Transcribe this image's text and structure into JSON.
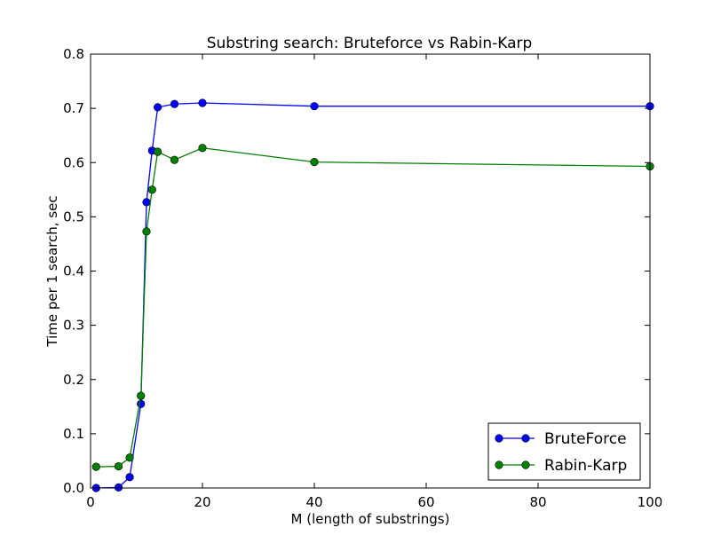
{
  "chart_data": {
    "type": "line",
    "title": "Substring search: Bruteforce vs Rabin-Karp",
    "xlabel": "M (length of substrings)",
    "ylabel": "Time per 1 search, sec",
    "xlim": [
      0,
      100
    ],
    "ylim": [
      0,
      0.8
    ],
    "xticks": [
      0,
      20,
      40,
      60,
      80,
      100
    ],
    "yticks": [
      0.0,
      0.1,
      0.2,
      0.3,
      0.4,
      0.5,
      0.6,
      0.7,
      0.8
    ],
    "ytick_labels": [
      "0.0",
      "0.1",
      "0.2",
      "0.3",
      "0.4",
      "0.5",
      "0.6",
      "0.7",
      "0.8"
    ],
    "grid": false,
    "legend_position": "bottom-right",
    "series": [
      {
        "name": "BruteForce",
        "color": "#0000ff",
        "x": [
          1,
          5,
          7,
          9,
          10,
          11,
          12,
          15,
          20,
          40,
          100
        ],
        "y": [
          0.0,
          0.001,
          0.02,
          0.155,
          0.527,
          0.622,
          0.702,
          0.708,
          0.71,
          0.704,
          0.704
        ]
      },
      {
        "name": "Rabin-Karp",
        "color": "#008000",
        "x": [
          1,
          5,
          7,
          9,
          10,
          11,
          12,
          15,
          20,
          40,
          100
        ],
        "y": [
          0.039,
          0.04,
          0.056,
          0.17,
          0.473,
          0.55,
          0.62,
          0.605,
          0.627,
          0.601,
          0.593
        ]
      }
    ]
  }
}
